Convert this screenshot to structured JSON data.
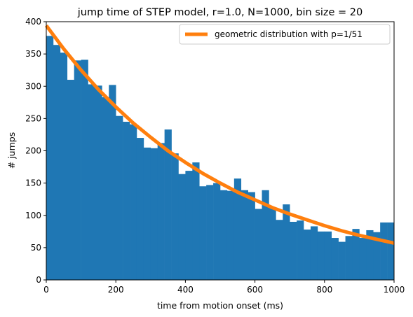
{
  "chart_data": {
    "type": "bar",
    "title": "jump time of STEP model, r=1.0, N=1000, bin size = 20",
    "xlabel": "time from motion onset (ms)",
    "ylabel": "# jumps",
    "xlim": [
      0,
      1000
    ],
    "ylim": [
      0,
      400
    ],
    "xticks": [
      "0",
      "200",
      "400",
      "600",
      "800",
      "1000"
    ],
    "yticks": [
      "0",
      "50",
      "100",
      "150",
      "200",
      "250",
      "300",
      "350",
      "400"
    ],
    "bin_width": 20,
    "bin_edges_start": 0,
    "histogram": {
      "color": "#1f77b4",
      "values": [
        378,
        364,
        352,
        310,
        340,
        341,
        303,
        301,
        283,
        302,
        254,
        245,
        241,
        220,
        205,
        204,
        212,
        233,
        196,
        164,
        169,
        182,
        145,
        147,
        150,
        139,
        138,
        157,
        139,
        136,
        110,
        139,
        112,
        93,
        117,
        90,
        92,
        78,
        83,
        75,
        75,
        65,
        59,
        68,
        79,
        65,
        77,
        74,
        89,
        89
      ]
    },
    "series": [
      {
        "name": "geometric distribution with p=1/51",
        "type": "line",
        "color": "#ff7f0e",
        "x": [
          0,
          50,
          100,
          150,
          200,
          250,
          300,
          350,
          400,
          450,
          500,
          550,
          600,
          650,
          700,
          750,
          800,
          850,
          900,
          950,
          1000
        ],
        "values": [
          394,
          358,
          325,
          295,
          268,
          243,
          221,
          200,
          182,
          165,
          150,
          136,
          124,
          112,
          102,
          93,
          84,
          76,
          69,
          63,
          57
        ]
      }
    ],
    "legend": {
      "position": "upper-right"
    },
    "grid": false
  }
}
